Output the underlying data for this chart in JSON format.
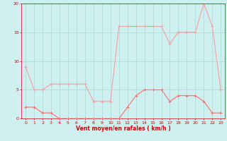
{
  "x": [
    0,
    1,
    2,
    3,
    4,
    5,
    6,
    7,
    8,
    9,
    10,
    11,
    12,
    13,
    14,
    15,
    16,
    17,
    18,
    19,
    20,
    21,
    22,
    23
  ],
  "wind_avg": [
    2,
    2,
    1,
    1,
    0,
    0,
    0,
    0,
    0,
    0,
    0,
    0,
    2,
    4,
    5,
    5,
    5,
    3,
    4,
    4,
    4,
    3,
    1,
    1
  ],
  "wind_gust": [
    9,
    5,
    5,
    6,
    6,
    6,
    6,
    6,
    3,
    3,
    3,
    16,
    16,
    16,
    16,
    16,
    16,
    13,
    15,
    15,
    15,
    20,
    16,
    5
  ],
  "line_color_avg": "#f87070",
  "line_color_gust": "#f8a0a0",
  "background_color": "#cff0f0",
  "grid_color": "#a8d8d8",
  "axis_color": "#cc0000",
  "tick_color": "#cc0000",
  "xlabel": "Vent moyen/en rafales ( km/h )",
  "ylim": [
    0,
    20
  ],
  "xlim": [
    -0.5,
    23.5
  ],
  "yticks": [
    0,
    5,
    10,
    15,
    20
  ],
  "xticks": [
    0,
    1,
    2,
    3,
    4,
    5,
    6,
    7,
    8,
    9,
    10,
    11,
    12,
    13,
    14,
    15,
    16,
    17,
    18,
    19,
    20,
    21,
    22,
    23
  ]
}
